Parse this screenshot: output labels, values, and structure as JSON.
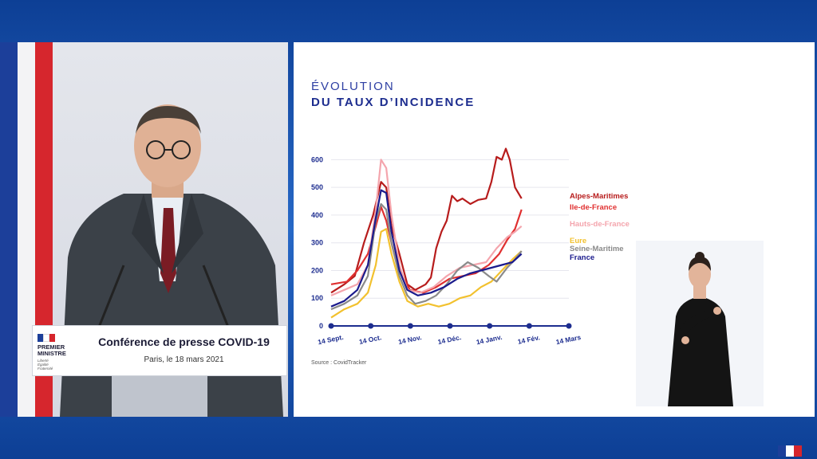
{
  "podium": {
    "title": "Conférence de presse COVID-19",
    "subtitle": "Paris, le 18 mars 2021",
    "logo_title_1": "PREMIER",
    "logo_title_2": "MINISTRE",
    "logo_motto_1": "Liberté",
    "logo_motto_2": "Égalité",
    "logo_motto_3": "Fraternité"
  },
  "slide": {
    "title_line1": "ÉVOLUTION",
    "title_line2": "DU TAUX D’INCIDENCE",
    "source": "Source : CovidTracker"
  },
  "colors": {
    "flag_blue": "#1c3f9a",
    "flag_red": "#d6262d",
    "background_blue": "#1a56b4"
  },
  "chart_data": {
    "type": "line",
    "title": "ÉVOLUTION DU TAUX D’INCIDENCE",
    "x_tick_labels": [
      "14 Sept.",
      "14 Oct.",
      "14 Nov.",
      "14 Déc.",
      "14 Janv.",
      "14 Fév.",
      "14 Mars"
    ],
    "x_range": [
      0,
      181
    ],
    "y_ticks": [
      0,
      100,
      200,
      300,
      400,
      500,
      600
    ],
    "ylim": [
      0,
      650
    ],
    "grid": "horizontal",
    "legend": "right",
    "series": [
      {
        "name": "Alpes-Maritimes",
        "color": "#b71c1c",
        "points": [
          [
            0,
            120
          ],
          [
            10,
            150
          ],
          [
            18,
            180
          ],
          [
            25,
            300
          ],
          [
            32,
            400
          ],
          [
            38,
            520
          ],
          [
            42,
            500
          ],
          [
            46,
            360
          ],
          [
            52,
            260
          ],
          [
            58,
            150
          ],
          [
            64,
            130
          ],
          [
            68,
            140
          ],
          [
            72,
            150
          ],
          [
            76,
            175
          ],
          [
            80,
            280
          ],
          [
            84,
            340
          ],
          [
            88,
            380
          ],
          [
            92,
            470
          ],
          [
            96,
            450
          ],
          [
            100,
            460
          ],
          [
            106,
            440
          ],
          [
            112,
            455
          ],
          [
            118,
            460
          ],
          [
            122,
            520
          ],
          [
            126,
            610
          ],
          [
            130,
            600
          ],
          [
            133,
            640
          ],
          [
            136,
            600
          ],
          [
            140,
            500
          ],
          [
            145,
            460
          ]
        ]
      },
      {
        "name": "Ile-de-France",
        "color": "#e03030",
        "points": [
          [
            0,
            150
          ],
          [
            12,
            160
          ],
          [
            20,
            200
          ],
          [
            28,
            260
          ],
          [
            34,
            360
          ],
          [
            38,
            430
          ],
          [
            42,
            380
          ],
          [
            48,
            260
          ],
          [
            54,
            180
          ],
          [
            60,
            130
          ],
          [
            70,
            120
          ],
          [
            80,
            140
          ],
          [
            90,
            170
          ],
          [
            100,
            180
          ],
          [
            110,
            190
          ],
          [
            120,
            220
          ],
          [
            128,
            260
          ],
          [
            134,
            310
          ],
          [
            140,
            350
          ],
          [
            145,
            420
          ]
        ]
      },
      {
        "name": "Hauts-de-France",
        "color": "#f4a5ad",
        "points": [
          [
            0,
            110
          ],
          [
            10,
            130
          ],
          [
            20,
            150
          ],
          [
            28,
            220
          ],
          [
            34,
            420
          ],
          [
            38,
            600
          ],
          [
            42,
            570
          ],
          [
            46,
            400
          ],
          [
            52,
            220
          ],
          [
            58,
            130
          ],
          [
            68,
            120
          ],
          [
            78,
            140
          ],
          [
            88,
            180
          ],
          [
            98,
            210
          ],
          [
            108,
            220
          ],
          [
            118,
            230
          ],
          [
            126,
            280
          ],
          [
            134,
            320
          ],
          [
            140,
            340
          ],
          [
            145,
            360
          ]
        ]
      },
      {
        "name": "Eure",
        "color": "#f2c12e",
        "points": [
          [
            0,
            30
          ],
          [
            10,
            60
          ],
          [
            20,
            80
          ],
          [
            28,
            120
          ],
          [
            34,
            220
          ],
          [
            38,
            340
          ],
          [
            42,
            350
          ],
          [
            46,
            260
          ],
          [
            52,
            160
          ],
          [
            58,
            90
          ],
          [
            66,
            70
          ],
          [
            74,
            80
          ],
          [
            82,
            70
          ],
          [
            90,
            80
          ],
          [
            98,
            100
          ],
          [
            106,
            110
          ],
          [
            114,
            140
          ],
          [
            122,
            160
          ],
          [
            130,
            200
          ],
          [
            138,
            240
          ],
          [
            145,
            270
          ]
        ]
      },
      {
        "name": "Seine-Maritime",
        "color": "#8a8a8a",
        "points": [
          [
            0,
            60
          ],
          [
            10,
            80
          ],
          [
            20,
            110
          ],
          [
            28,
            180
          ],
          [
            34,
            380
          ],
          [
            38,
            440
          ],
          [
            42,
            420
          ],
          [
            46,
            300
          ],
          [
            52,
            180
          ],
          [
            58,
            110
          ],
          [
            64,
            80
          ],
          [
            72,
            90
          ],
          [
            80,
            110
          ],
          [
            88,
            150
          ],
          [
            96,
            200
          ],
          [
            104,
            230
          ],
          [
            112,
            210
          ],
          [
            120,
            180
          ],
          [
            126,
            160
          ],
          [
            134,
            210
          ],
          [
            140,
            240
          ],
          [
            145,
            270
          ]
        ]
      },
      {
        "name": "France",
        "color": "#1a1a8c",
        "points": [
          [
            0,
            70
          ],
          [
            10,
            90
          ],
          [
            20,
            130
          ],
          [
            28,
            220
          ],
          [
            34,
            390
          ],
          [
            38,
            490
          ],
          [
            42,
            480
          ],
          [
            46,
            340
          ],
          [
            52,
            200
          ],
          [
            58,
            130
          ],
          [
            66,
            110
          ],
          [
            76,
            120
          ],
          [
            86,
            140
          ],
          [
            96,
            170
          ],
          [
            106,
            190
          ],
          [
            114,
            200
          ],
          [
            122,
            210
          ],
          [
            130,
            220
          ],
          [
            138,
            230
          ],
          [
            145,
            260
          ]
        ]
      }
    ]
  }
}
